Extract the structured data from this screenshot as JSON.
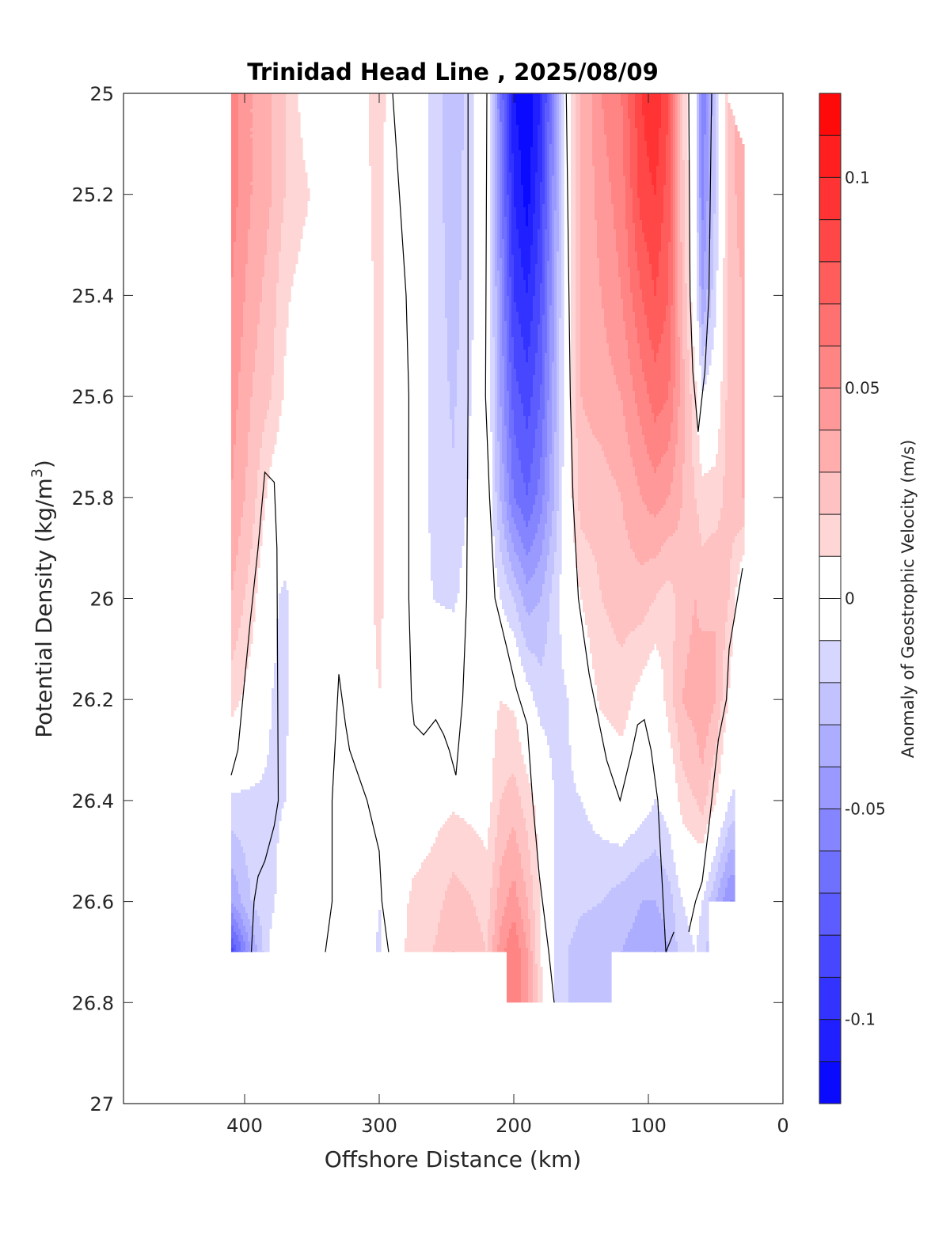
{
  "chart_data": {
    "type": "heatmap",
    "subtype": "filled-contour",
    "title": "Trinidad Head Line , 2025/08/09",
    "xlabel": "Offshore Distance (km)",
    "ylabel": "Potential Density (kg/m",
    "ylabel_superscript": "3",
    "ylabel_suffix": ")",
    "colorbar_label": "Anomaly of Geostrophic Velocity (m/s)",
    "xlim": [
      490,
      0
    ],
    "ylim": [
      25,
      27
    ],
    "y_reversed": true,
    "x_reversed": true,
    "xticks": [
      400,
      300,
      200,
      100,
      0
    ],
    "xtick_labels": [
      "400",
      "300",
      "200",
      "100",
      "0"
    ],
    "yticks": [
      25,
      25.2,
      25.4,
      25.6,
      25.8,
      26,
      26.2,
      26.4,
      26.6,
      26.8,
      27
    ],
    "ytick_labels": [
      "25",
      "25.2",
      "25.4",
      "25.6",
      "25.8",
      "26",
      "26.2",
      "26.4",
      "26.6",
      "26.8",
      "27"
    ],
    "colorbar": {
      "range": [
        -0.12,
        0.12
      ],
      "step": 0.01,
      "ticks": [
        0.1,
        0.05,
        0,
        -0.05,
        -0.1
      ],
      "tick_labels": [
        "0.1",
        "0.05",
        "0",
        "-0.05",
        "-0.1"
      ],
      "negative_color": "#0000ff",
      "positive_color": "#ff0000",
      "zero_color": "#ffffff"
    },
    "contour_levels": [
      0
    ],
    "grid": false,
    "field": {
      "x_km": [
        410,
        395,
        380,
        370,
        355,
        340,
        330,
        315,
        300,
        290,
        275,
        260,
        245,
        230,
        220,
        210,
        200,
        190,
        180,
        170,
        160,
        150,
        135,
        120,
        105,
        95,
        85,
        75,
        65,
        60,
        50,
        40,
        30
      ],
      "sigma": [
        25.0,
        25.2,
        25.4,
        25.6,
        25.8,
        26.0,
        26.2,
        26.4,
        26.6,
        26.7,
        26.8
      ],
      "bottom_sigma": [
        26.7,
        26.7,
        26.7,
        26.7,
        26.7,
        26.7,
        26.7,
        26.7,
        26.7,
        26.7,
        26.7,
        26.7,
        26.7,
        26.7,
        26.7,
        26.7,
        26.8,
        26.8,
        26.8,
        26.8,
        26.8,
        26.8,
        26.8,
        26.7,
        26.7,
        26.7,
        26.7,
        26.7,
        26.7,
        26.7,
        26.6,
        26.6,
        26.0
      ],
      "values": [
        [
          0.055,
          0.04,
          0.03,
          0.02,
          0.004,
          0.002,
          0.003,
          0.006,
          0.014,
          0.004,
          -0.004,
          -0.012,
          -0.03,
          -0.01,
          0.004,
          -0.06,
          -0.11,
          -0.12,
          -0.1,
          -0.05,
          0.004,
          0.03,
          0.05,
          0.06,
          0.09,
          0.1,
          0.08,
          0.02,
          -0.005,
          -0.06,
          -0.02,
          0.025,
          0.04
        ],
        [
          0.055,
          0.04,
          0.03,
          0.02,
          0.012,
          0.002,
          0.002,
          0.006,
          0.013,
          0.004,
          -0.004,
          -0.012,
          -0.028,
          -0.01,
          0.003,
          -0.055,
          -0.1,
          -0.115,
          -0.09,
          -0.045,
          0.004,
          0.03,
          0.045,
          0.055,
          0.085,
          0.09,
          0.075,
          0.025,
          -0.005,
          -0.055,
          -0.018,
          0.025,
          0.035
        ],
        [
          0.05,
          0.035,
          0.025,
          0.012,
          0.004,
          0.002,
          0.002,
          0.005,
          0.012,
          0.004,
          -0.004,
          -0.012,
          -0.025,
          -0.01,
          0.003,
          -0.045,
          -0.09,
          -0.1,
          -0.08,
          -0.04,
          0.004,
          0.03,
          0.04,
          0.05,
          0.07,
          0.08,
          0.07,
          0.03,
          -0.002,
          -0.04,
          -0.012,
          0.025,
          0.03
        ],
        [
          0.045,
          0.03,
          0.02,
          0.008,
          0.003,
          0.002,
          0.002,
          0.005,
          0.012,
          0.004,
          -0.004,
          -0.012,
          -0.022,
          -0.008,
          0.003,
          -0.04,
          -0.075,
          -0.085,
          -0.07,
          -0.035,
          0.004,
          0.03,
          0.035,
          0.04,
          0.055,
          0.065,
          0.06,
          0.035,
          0.012,
          -0.008,
          0.0,
          0.025,
          0.03
        ],
        [
          0.04,
          0.025,
          0.004,
          -0.002,
          0.002,
          0.002,
          0.002,
          0.005,
          0.012,
          0.004,
          -0.004,
          -0.012,
          -0.018,
          -0.006,
          0.002,
          -0.03,
          -0.06,
          -0.07,
          -0.055,
          -0.03,
          0.003,
          0.025,
          0.025,
          0.03,
          0.04,
          0.045,
          0.04,
          0.03,
          0.02,
          0.015,
          0.015,
          0.025,
          0.03
        ],
        [
          0.03,
          0.015,
          -0.008,
          -0.012,
          0.002,
          0.002,
          0.002,
          0.005,
          0.012,
          0.004,
          -0.004,
          -0.01,
          -0.012,
          -0.002,
          0.002,
          -0.01,
          -0.02,
          -0.035,
          -0.03,
          -0.015,
          0.0,
          0.01,
          0.02,
          0.025,
          0.025,
          0.02,
          0.015,
          0.025,
          0.03,
          0.025,
          0.03,
          0.02,
          -0.004
        ],
        [
          0.015,
          0.004,
          -0.01,
          -0.012,
          0.002,
          0.002,
          0.002,
          0.004,
          0.01,
          0.003,
          -0.003,
          0.002,
          0.003,
          0.005,
          0.003,
          0.01,
          0.008,
          -0.005,
          -0.015,
          -0.015,
          -0.01,
          0.0,
          0.012,
          0.015,
          0.005,
          -0.002,
          0.015,
          0.03,
          0.035,
          0.04,
          0.03,
          0.008,
          -0.01
        ],
        [
          -0.012,
          -0.012,
          -0.012,
          -0.01,
          0.002,
          0.002,
          0.0,
          0.004,
          0.004,
          0.003,
          0.003,
          0.006,
          0.008,
          0.006,
          0.005,
          0.02,
          0.025,
          0.015,
          0.004,
          -0.01,
          -0.012,
          -0.01,
          -0.004,
          0.002,
          -0.004,
          -0.01,
          -0.004,
          0.015,
          0.02,
          0.025,
          0.01,
          -0.01,
          -0.015
        ],
        [
          -0.04,
          -0.02,
          -0.012,
          -0.004,
          0.002,
          0.002,
          -0.004,
          0.002,
          -0.01,
          0.003,
          0.012,
          0.015,
          0.025,
          0.02,
          0.015,
          0.035,
          0.045,
          0.03,
          0.008,
          -0.01,
          -0.015,
          -0.018,
          -0.02,
          -0.025,
          -0.03,
          -0.03,
          -0.025,
          -0.01,
          -0.005,
          -0.01,
          -0.03,
          -0.05,
          -0.05
        ],
        [
          -0.085,
          -0.04,
          -0.006,
          0.003,
          0.002,
          0.0,
          -0.004,
          0.001,
          -0.012,
          0.002,
          0.015,
          0.02,
          0.03,
          0.025,
          0.02,
          0.045,
          0.06,
          0.04,
          0.01,
          -0.01,
          -0.02,
          -0.025,
          -0.028,
          -0.03,
          -0.035,
          -0.04,
          -0.03,
          -0.015,
          -0.01,
          -0.015,
          -0.03,
          -0.05,
          -0.05
        ],
        [
          -0.085,
          -0.04,
          -0.006,
          0.003,
          0.002,
          0.0,
          -0.004,
          0.001,
          -0.012,
          0.002,
          0.015,
          0.02,
          0.03,
          0.025,
          0.02,
          0.045,
          0.06,
          0.04,
          0.012,
          -0.01,
          -0.02,
          -0.025,
          -0.028,
          -0.03,
          -0.035,
          -0.04,
          -0.03,
          -0.015,
          -0.01,
          -0.015,
          -0.03,
          -0.05,
          -0.05
        ]
      ]
    },
    "zero_contours": [
      [
        [
          410,
          26.35
        ],
        [
          405,
          26.3
        ],
        [
          396,
          26.05
        ],
        [
          390,
          25.9
        ],
        [
          385,
          25.75
        ],
        [
          378,
          25.77
        ],
        [
          376,
          25.9
        ],
        [
          375,
          26.4
        ],
        [
          378,
          26.45
        ],
        [
          385,
          26.52
        ],
        [
          390,
          26.55
        ],
        [
          393,
          26.6
        ],
        [
          395,
          26.7
        ]
      ],
      [
        [
          340,
          26.7
        ],
        [
          335,
          26.6
        ],
        [
          335,
          26.4
        ],
        [
          330,
          26.15
        ],
        [
          325,
          26.25
        ],
        [
          322,
          26.3
        ],
        [
          309,
          26.4
        ],
        [
          300,
          26.5
        ],
        [
          298,
          26.6
        ],
        [
          293,
          26.7
        ]
      ],
      [
        [
          290,
          25.0
        ],
        [
          285,
          25.2
        ],
        [
          280,
          25.4
        ],
        [
          278,
          25.6
        ],
        [
          278,
          26.0
        ],
        [
          276,
          26.2
        ],
        [
          274,
          26.25
        ],
        [
          267,
          26.27
        ],
        [
          258,
          26.24
        ],
        [
          252,
          26.27
        ],
        [
          248,
          26.3
        ],
        [
          243,
          26.35
        ],
        [
          238,
          26.2
        ],
        [
          235,
          26.0
        ],
        [
          234,
          25.6
        ],
        [
          234,
          25.0
        ]
      ],
      [
        [
          220,
          25.0
        ],
        [
          221,
          25.6
        ],
        [
          218,
          25.8
        ],
        [
          214,
          26.0
        ],
        [
          205,
          26.1
        ],
        [
          198,
          26.18
        ],
        [
          190,
          26.25
        ],
        [
          186,
          26.4
        ],
        [
          181,
          26.55
        ],
        [
          174,
          26.7
        ],
        [
          170,
          26.8
        ]
      ],
      [
        [
          161,
          25.0
        ],
        [
          159,
          25.4
        ],
        [
          158,
          25.6
        ],
        [
          156,
          25.8
        ],
        [
          152,
          26.0
        ],
        [
          144,
          26.15
        ],
        [
          131,
          26.32
        ],
        [
          121,
          26.4
        ],
        [
          112,
          26.3
        ],
        [
          108,
          26.25
        ],
        [
          103,
          26.24
        ],
        [
          98,
          26.3
        ],
        [
          93,
          26.4
        ],
        [
          91,
          26.5
        ],
        [
          89,
          26.6
        ],
        [
          87,
          26.7
        ],
        [
          81,
          26.66
        ]
      ],
      [
        [
          70,
          25.0
        ],
        [
          69,
          25.4
        ],
        [
          67,
          25.55
        ],
        [
          63,
          25.67
        ],
        [
          58,
          25.55
        ],
        [
          55,
          25.4
        ],
        [
          53,
          25.0
        ]
      ],
      [
        [
          70,
          26.66
        ],
        [
          65,
          26.6
        ],
        [
          60,
          26.56
        ],
        [
          55,
          26.45
        ],
        [
          48,
          26.28
        ],
        [
          42,
          26.2
        ],
        [
          40,
          26.1
        ],
        [
          30,
          25.94
        ]
      ]
    ]
  }
}
